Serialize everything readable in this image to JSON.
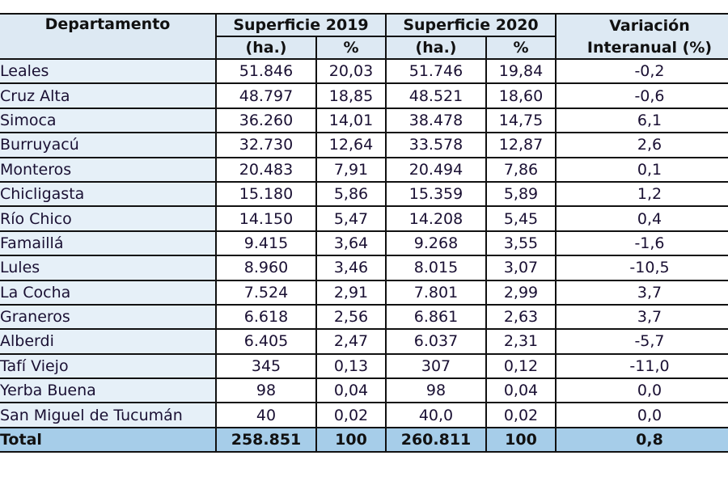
{
  "table": {
    "headers": {
      "departamento": "Departamento",
      "sup2019": "Superficie 2019",
      "sup2020": "Superficie 2020",
      "variacion_line1": "Variación",
      "variacion_line2": "Interanual (%)",
      "ha": "(ha.)",
      "pct": "%"
    },
    "rows": [
      {
        "dept": "Leales",
        "ha2019": "51.846",
        "pct2019": "20,03",
        "ha2020": "51.746",
        "pct2020": "19,84",
        "var": "-0,2"
      },
      {
        "dept": "Cruz Alta",
        "ha2019": "48.797",
        "pct2019": "18,85",
        "ha2020": "48.521",
        "pct2020": "18,60",
        "var": "-0,6"
      },
      {
        "dept": "Simoca",
        "ha2019": "36.260",
        "pct2019": "14,01",
        "ha2020": "38.478",
        "pct2020": "14,75",
        "var": "6,1"
      },
      {
        "dept": "Burruyacú",
        "ha2019": "32.730",
        "pct2019": "12,64",
        "ha2020": "33.578",
        "pct2020": "12,87",
        "var": "2,6"
      },
      {
        "dept": "Monteros",
        "ha2019": "20.483",
        "pct2019": "7,91",
        "ha2020": "20.494",
        "pct2020": "7,86",
        "var": "0,1"
      },
      {
        "dept": "Chicligasta",
        "ha2019": "15.180",
        "pct2019": "5,86",
        "ha2020": "15.359",
        "pct2020": "5,89",
        "var": "1,2"
      },
      {
        "dept": "Río Chico",
        "ha2019": "14.150",
        "pct2019": "5,47",
        "ha2020": "14.208",
        "pct2020": "5,45",
        "var": "0,4"
      },
      {
        "dept": "Famaillá",
        "ha2019": "9.415",
        "pct2019": "3,64",
        "ha2020": "9.268",
        "pct2020": "3,55",
        "var": "-1,6"
      },
      {
        "dept": "Lules",
        "ha2019": "8.960",
        "pct2019": "3,46",
        "ha2020": "8.015",
        "pct2020": "3,07",
        "var": "-10,5"
      },
      {
        "dept": "La Cocha",
        "ha2019": "7.524",
        "pct2019": "2,91",
        "ha2020": "7.801",
        "pct2020": "2,99",
        "var": "3,7"
      },
      {
        "dept": "Graneros",
        "ha2019": "6.618",
        "pct2019": "2,56",
        "ha2020": "6.861",
        "pct2020": "2,63",
        "var": "3,7"
      },
      {
        "dept": "Alberdi",
        "ha2019": "6.405",
        "pct2019": "2,47",
        "ha2020": "6.037",
        "pct2020": "2,31",
        "var": "-5,7"
      },
      {
        "dept": "Tafí Viejo",
        "ha2019": "345",
        "pct2019": "0,13",
        "ha2020": "307",
        "pct2020": "0,12",
        "var": "-11,0"
      },
      {
        "dept": "Yerba Buena",
        "ha2019": "98",
        "pct2019": "0,04",
        "ha2020": "98",
        "pct2020": "0,04",
        "var": "0,0"
      },
      {
        "dept": "San Miguel de Tucumán",
        "ha2019": "40",
        "pct2019": "0,02",
        "ha2020": "40,0",
        "pct2020": "0,02",
        "var": "0,0"
      }
    ],
    "total": {
      "dept": "Total",
      "ha2019": "258.851",
      "pct2019": "100",
      "ha2020": "260.811",
      "pct2020": "100",
      "var": "0,8"
    }
  },
  "colors": {
    "header_bg": "#dde9f3",
    "dept_bg": "#e6f0f8",
    "total_bg": "#a6cde9",
    "border": "#111111"
  }
}
